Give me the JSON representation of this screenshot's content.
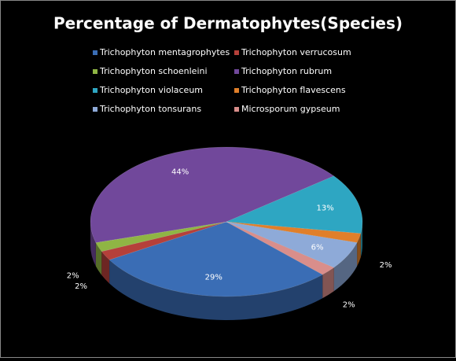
{
  "chart_data": {
    "type": "pie",
    "title": "Percentage of Dermatophytes(Species)",
    "categories": [
      "Trichophyton mentagrophytes",
      "Trichophyton verrucosum",
      "Trichophyton schoenleini",
      "Trichophyton rubrum",
      "Trichophyton violaceum",
      "Trichophyton flavescens",
      "Trichophyton tonsurans",
      "Microsporum gypseum"
    ],
    "values": [
      29,
      2,
      2,
      44,
      13,
      2,
      6,
      2
    ],
    "value_labels": [
      "29%",
      "2%",
      "2%",
      "44%",
      "13%",
      "2%",
      "6%",
      "2%"
    ],
    "colors": [
      "#3a6db5",
      "#b5403a",
      "#8fb544",
      "#71489b",
      "#2ea6c2",
      "#e07f2a",
      "#8eaad8",
      "#d98e8b"
    ]
  }
}
